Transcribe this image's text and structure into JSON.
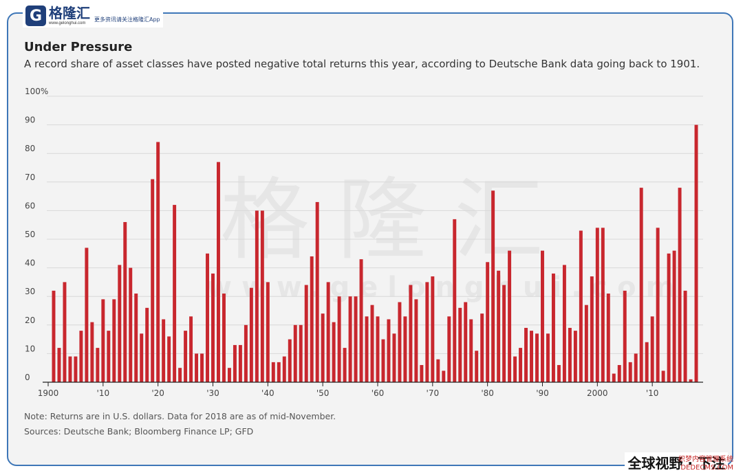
{
  "header": {
    "logo_mark": "G",
    "logo_name": "格隆汇",
    "logo_url": "www.gelonghui.com",
    "logo_tagline": "更多资讯请关注格隆汇App"
  },
  "watermark": {
    "big": "格隆汇",
    "url": "www.gelonghui.com"
  },
  "footer": {
    "text": "全球视野 · 下注",
    "site_watermark_1": "织梦内容管理系统",
    "site_watermark_2": "DEDECMS.COM"
  },
  "colors": {
    "bar": "#c8272e",
    "grid": "#d8d8d8",
    "panel": "#f3f3f3",
    "frame": "#3d76b7"
  },
  "chart_data": {
    "type": "bar",
    "title": "Under Pressure",
    "subtitle": "A record share of asset classes have posted negative total returns this year, according to Deutsche Bank data going back to 1901.",
    "ylim": [
      0,
      100
    ],
    "y_ticks": [
      "0",
      "10",
      "20",
      "30",
      "40",
      "50",
      "60",
      "70",
      "80",
      "90",
      "100%"
    ],
    "y_tick_values": [
      0,
      10,
      20,
      30,
      40,
      50,
      60,
      70,
      80,
      90,
      100
    ],
    "x_tick_labels": [
      "1900",
      "'10",
      "'20",
      "'30",
      "'40",
      "'50",
      "'60",
      "'70",
      "'80",
      "'90",
      "2000",
      "'10"
    ],
    "x_tick_years": [
      1900,
      1910,
      1920,
      1930,
      1940,
      1950,
      1960,
      1970,
      1980,
      1990,
      2000,
      2010
    ],
    "x_range": [
      1900,
      2019
    ],
    "x": [
      1901,
      1902,
      1903,
      1904,
      1905,
      1906,
      1907,
      1908,
      1909,
      1910,
      1911,
      1912,
      1913,
      1914,
      1915,
      1916,
      1917,
      1918,
      1919,
      1920,
      1921,
      1922,
      1923,
      1924,
      1925,
      1926,
      1927,
      1928,
      1929,
      1930,
      1931,
      1932,
      1933,
      1934,
      1935,
      1936,
      1937,
      1938,
      1939,
      1940,
      1941,
      1942,
      1943,
      1944,
      1945,
      1946,
      1947,
      1948,
      1949,
      1950,
      1951,
      1952,
      1953,
      1954,
      1955,
      1956,
      1957,
      1958,
      1959,
      1960,
      1961,
      1962,
      1963,
      1964,
      1965,
      1966,
      1967,
      1968,
      1969,
      1970,
      1971,
      1972,
      1973,
      1974,
      1975,
      1976,
      1977,
      1978,
      1979,
      1980,
      1981,
      1982,
      1983,
      1984,
      1985,
      1986,
      1987,
      1988,
      1989,
      1990,
      1991,
      1992,
      1993,
      1994,
      1995,
      1996,
      1997,
      1998,
      1999,
      2000,
      2001,
      2002,
      2003,
      2004,
      2005,
      2006,
      2007,
      2008,
      2009,
      2010,
      2011,
      2012,
      2013,
      2014,
      2015,
      2016,
      2017,
      2018
    ],
    "values": [
      32,
      12,
      35,
      9,
      9,
      18,
      47,
      21,
      12,
      29,
      18,
      29,
      41,
      56,
      40,
      31,
      17,
      26,
      71,
      84,
      22,
      16,
      62,
      5,
      18,
      23,
      10,
      10,
      45,
      38,
      77,
      31,
      5,
      13,
      13,
      20,
      33,
      60,
      60,
      35,
      7,
      7,
      9,
      15,
      20,
      20,
      34,
      44,
      63,
      24,
      35,
      21,
      30,
      12,
      30,
      30,
      43,
      23,
      27,
      23,
      15,
      22,
      17,
      28,
      23,
      34,
      29,
      6,
      35,
      37,
      8,
      4,
      23,
      57,
      26,
      28,
      22,
      11,
      24,
      42,
      67,
      39,
      34,
      46,
      9,
      12,
      19,
      18,
      17,
      46,
      17,
      38,
      6,
      41,
      19,
      18,
      53,
      27,
      37,
      54,
      54,
      31,
      3,
      6,
      32,
      7,
      10,
      68,
      14,
      23,
      54,
      4,
      45,
      46,
      68,
      32,
      1,
      90
    ],
    "notes": [
      "Note: Returns are in U.S. dollars. Data for 2018 are as of mid-November.",
      "Sources: Deutsche Bank; Bloomberg Finance LP; GFD"
    ]
  }
}
